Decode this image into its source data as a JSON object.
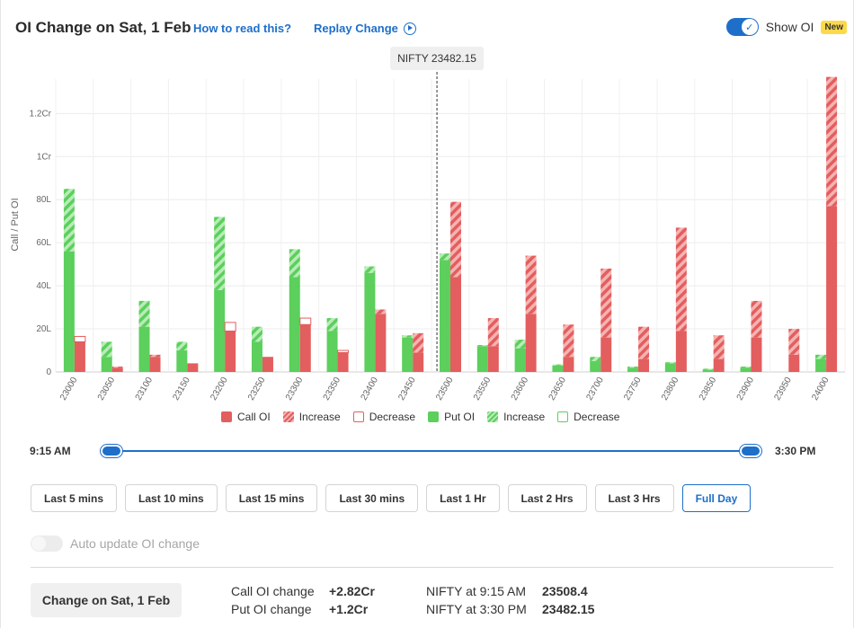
{
  "header": {
    "title": "OI Change on Sat, 1 Feb",
    "how_to_read": "How to read this?",
    "replay": "Replay Change",
    "show_oi_label": "Show OI",
    "new_badge": "New"
  },
  "chart_data": {
    "type": "bar",
    "ylabel": "Call / Put OI",
    "ylim": [
      0,
      1.36
    ],
    "y_unit": "Cr",
    "y_ticks": [
      {
        "value": 0,
        "label": "0"
      },
      {
        "value": 0.2,
        "label": "20L"
      },
      {
        "value": 0.4,
        "label": "40L"
      },
      {
        "value": 0.6,
        "label": "60L"
      },
      {
        "value": 0.8,
        "label": "80L"
      },
      {
        "value": 1.0,
        "label": "1Cr"
      },
      {
        "value": 1.2,
        "label": "1.2Cr"
      }
    ],
    "spot_label": "NIFTY 23482.15",
    "spot_value": 23482.15,
    "categories": [
      "23000",
      "23050",
      "23100",
      "23150",
      "23200",
      "23250",
      "23300",
      "23350",
      "23400",
      "23450",
      "23500",
      "23550",
      "23600",
      "23650",
      "23700",
      "23750",
      "23800",
      "23850",
      "23900",
      "23950",
      "24000"
    ],
    "series": [
      {
        "name": "Call OI",
        "values": [
          0.14,
          0.02,
          0.07,
          0.04,
          0.19,
          0.07,
          0.22,
          0.09,
          0.27,
          0.09,
          0.44,
          0.12,
          0.27,
          0.07,
          0.16,
          0.06,
          0.19,
          0.06,
          0.16,
          0.08,
          0.77
        ]
      },
      {
        "name": "Increase",
        "values": [
          0,
          0.005,
          0.01,
          0,
          0,
          0,
          0,
          0,
          0.02,
          0.09,
          0.35,
          0.13,
          0.27,
          0.15,
          0.32,
          0.15,
          0.48,
          0.11,
          0.17,
          0.12,
          0.6
        ]
      },
      {
        "name": "Decrease",
        "values": [
          0.025,
          0,
          0,
          0,
          0.04,
          0,
          0.03,
          0.01,
          0,
          0,
          0,
          0,
          0,
          0,
          0,
          0,
          0,
          0,
          0,
          0,
          0
        ]
      },
      {
        "name": "Put OI",
        "values": [
          0.56,
          0.07,
          0.21,
          0.1,
          0.38,
          0.14,
          0.44,
          0.19,
          0.46,
          0.16,
          0.52,
          0.12,
          0.11,
          0.03,
          0.05,
          0.02,
          0.04,
          0.01,
          0.02,
          0,
          0.06
        ]
      },
      {
        "name": "Increase",
        "values": [
          0.29,
          0.07,
          0.12,
          0.04,
          0.34,
          0.07,
          0.13,
          0.06,
          0.03,
          0.01,
          0.03,
          0.005,
          0.04,
          0.005,
          0.02,
          0.005,
          0.005,
          0.005,
          0.005,
          0,
          0.02
        ]
      },
      {
        "name": "Decrease",
        "values": [
          0,
          0,
          0,
          0,
          0,
          0,
          0,
          0,
          0,
          0,
          0,
          0,
          0,
          0,
          0,
          0,
          0,
          0,
          0,
          0,
          0
        ]
      }
    ],
    "colors": {
      "call": "#e35e5e",
      "call_light": "#f5b3b3",
      "put": "#5ccf5c",
      "put_light": "#b8ecb8"
    },
    "legend_position": "bottom"
  },
  "legend": [
    "Call OI",
    "Increase",
    "Decrease",
    "Put OI",
    "Increase",
    "Decrease"
  ],
  "slider": {
    "start": "9:15 AM",
    "end": "3:30 PM"
  },
  "range_buttons": [
    "Last 5 mins",
    "Last 10 mins",
    "Last 15 mins",
    "Last 30 mins",
    "Last 1 Hr",
    "Last 2 Hrs",
    "Last 3 Hrs",
    "Full Day"
  ],
  "active_range": "Full Day",
  "auto_update_label": "Auto update OI change",
  "summary": {
    "change_button": "Change on Sat, 1 Feb",
    "call_label": "Call OI change",
    "call_value": "+2.82Cr",
    "put_label": "Put OI change",
    "put_value": "+1.2Cr",
    "nifty_start_label": "NIFTY at 9:15 AM",
    "nifty_start_value": "23508.4",
    "nifty_end_label": "NIFTY at 3:30 PM",
    "nifty_end_value": "23482.15"
  }
}
